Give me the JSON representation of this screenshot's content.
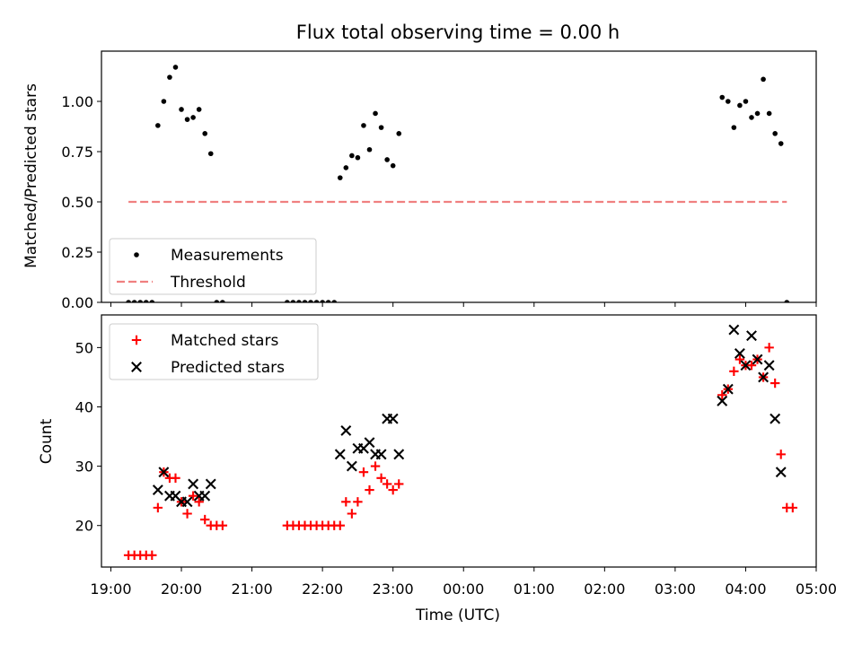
{
  "title": "Flux total observing time = 0.00 h",
  "chart_data": [
    {
      "type": "scatter",
      "panel": "top",
      "title": "Flux total observing time = 0.00 h",
      "ylabel": "Matched/Predicted stars",
      "xlim": [
        "18:52",
        "05:00"
      ],
      "ylim": [
        0,
        1.25
      ],
      "yticks": [
        0.0,
        0.25,
        0.5,
        0.75,
        1.0
      ],
      "ytick_labels": [
        "0.00",
        "0.25",
        "0.50",
        "0.75",
        "1.00"
      ],
      "legend": {
        "placement": "lower-left",
        "entries": [
          "Measurements",
          "Threshold"
        ]
      },
      "series": [
        {
          "name": "Measurements",
          "marker": "dot",
          "color": "#000000",
          "points": [
            [
              "19:15",
              0.0
            ],
            [
              "19:20",
              0.0
            ],
            [
              "19:25",
              0.0
            ],
            [
              "19:30",
              0.0
            ],
            [
              "19:35",
              0.0
            ],
            [
              "19:40",
              0.88
            ],
            [
              "19:45",
              1.0
            ],
            [
              "19:50",
              1.12
            ],
            [
              "19:55",
              1.17
            ],
            [
              "20:00",
              0.96
            ],
            [
              "20:05",
              0.91
            ],
            [
              "20:10",
              0.92
            ],
            [
              "20:15",
              0.96
            ],
            [
              "20:20",
              0.84
            ],
            [
              "20:25",
              0.74
            ],
            [
              "20:30",
              0.0
            ],
            [
              "20:35",
              0.0
            ],
            [
              "21:30",
              0.0
            ],
            [
              "21:35",
              0.0
            ],
            [
              "21:40",
              0.0
            ],
            [
              "21:45",
              0.0
            ],
            [
              "21:50",
              0.0
            ],
            [
              "21:55",
              0.0
            ],
            [
              "22:00",
              0.0
            ],
            [
              "22:05",
              0.0
            ],
            [
              "22:10",
              0.0
            ],
            [
              "22:15",
              0.62
            ],
            [
              "22:20",
              0.67
            ],
            [
              "22:25",
              0.73
            ],
            [
              "22:30",
              0.72
            ],
            [
              "22:35",
              0.88
            ],
            [
              "22:40",
              0.76
            ],
            [
              "22:45",
              0.94
            ],
            [
              "22:50",
              0.87
            ],
            [
              "22:55",
              0.71
            ],
            [
              "23:00",
              0.68
            ],
            [
              "23:05",
              0.84
            ],
            [
              "03:40",
              1.02
            ],
            [
              "03:45",
              1.0
            ],
            [
              "03:50",
              0.87
            ],
            [
              "03:55",
              0.98
            ],
            [
              "04:00",
              1.0
            ],
            [
              "04:05",
              0.92
            ],
            [
              "04:10",
              0.94
            ],
            [
              "04:15",
              1.11
            ],
            [
              "04:20",
              0.94
            ],
            [
              "04:25",
              0.84
            ],
            [
              "04:30",
              0.79
            ],
            [
              "04:35",
              0.0
            ]
          ]
        },
        {
          "name": "Threshold",
          "style": "dashed",
          "color": "#f08080",
          "points": [
            [
              "19:15",
              0.5
            ],
            [
              "04:35",
              0.5
            ]
          ]
        }
      ]
    },
    {
      "type": "scatter",
      "panel": "bottom",
      "xlabel": "Time (UTC)",
      "ylabel": "Count",
      "xlim": [
        "18:52",
        "05:00"
      ],
      "ylim": [
        13,
        55.5
      ],
      "xticks": [
        "19:00",
        "20:00",
        "21:00",
        "22:00",
        "23:00",
        "00:00",
        "01:00",
        "02:00",
        "03:00",
        "04:00",
        "05:00"
      ],
      "yticks": [
        20,
        30,
        40,
        50
      ],
      "ytick_labels": [
        "20",
        "30",
        "40",
        "50"
      ],
      "legend": {
        "placement": "upper-left",
        "entries": [
          "Matched stars",
          "Predicted stars"
        ]
      },
      "series": [
        {
          "name": "Matched stars",
          "marker": "plus",
          "color": "#ff0000",
          "points": [
            [
              "19:15",
              15
            ],
            [
              "19:20",
              15
            ],
            [
              "19:25",
              15
            ],
            [
              "19:30",
              15
            ],
            [
              "19:35",
              15
            ],
            [
              "19:40",
              23
            ],
            [
              "19:45",
              29
            ],
            [
              "19:50",
              28
            ],
            [
              "19:55",
              28
            ],
            [
              "20:00",
              24
            ],
            [
              "20:05",
              22
            ],
            [
              "20:10",
              25
            ],
            [
              "20:15",
              24
            ],
            [
              "20:20",
              21
            ],
            [
              "20:25",
              20
            ],
            [
              "20:30",
              20
            ],
            [
              "20:35",
              20
            ],
            [
              "21:30",
              20
            ],
            [
              "21:35",
              20
            ],
            [
              "21:40",
              20
            ],
            [
              "21:45",
              20
            ],
            [
              "21:50",
              20
            ],
            [
              "21:55",
              20
            ],
            [
              "22:00",
              20
            ],
            [
              "22:05",
              20
            ],
            [
              "22:10",
              20
            ],
            [
              "22:15",
              20
            ],
            [
              "22:20",
              24
            ],
            [
              "22:25",
              22
            ],
            [
              "22:30",
              24
            ],
            [
              "22:35",
              29
            ],
            [
              "22:40",
              26
            ],
            [
              "22:45",
              30
            ],
            [
              "22:50",
              28
            ],
            [
              "22:55",
              27
            ],
            [
              "23:00",
              26
            ],
            [
              "23:05",
              27
            ],
            [
              "03:40",
              42
            ],
            [
              "03:45",
              43
            ],
            [
              "03:50",
              46
            ],
            [
              "03:55",
              48
            ],
            [
              "04:00",
              47
            ],
            [
              "04:05",
              47
            ],
            [
              "04:10",
              48
            ],
            [
              "04:15",
              45
            ],
            [
              "04:20",
              50
            ],
            [
              "04:25",
              44
            ],
            [
              "04:30",
              32
            ],
            [
              "04:35",
              23
            ],
            [
              "04:40",
              23
            ]
          ]
        },
        {
          "name": "Predicted stars",
          "marker": "x",
          "color": "#000000",
          "points": [
            [
              "19:40",
              26
            ],
            [
              "19:45",
              29
            ],
            [
              "19:50",
              25
            ],
            [
              "19:55",
              25
            ],
            [
              "20:00",
              24
            ],
            [
              "20:05",
              24
            ],
            [
              "20:10",
              27
            ],
            [
              "20:15",
              25
            ],
            [
              "20:20",
              25
            ],
            [
              "20:25",
              27
            ],
            [
              "22:15",
              32
            ],
            [
              "22:20",
              36
            ],
            [
              "22:25",
              30
            ],
            [
              "22:30",
              33
            ],
            [
              "22:35",
              33
            ],
            [
              "22:40",
              34
            ],
            [
              "22:45",
              32
            ],
            [
              "22:50",
              32
            ],
            [
              "22:55",
              38
            ],
            [
              "23:00",
              38
            ],
            [
              "23:05",
              32
            ],
            [
              "03:40",
              41
            ],
            [
              "03:45",
              43
            ],
            [
              "03:50",
              53
            ],
            [
              "03:55",
              49
            ],
            [
              "04:00",
              47
            ],
            [
              "04:05",
              52
            ],
            [
              "04:10",
              48
            ],
            [
              "04:15",
              45
            ],
            [
              "04:20",
              47
            ],
            [
              "04:25",
              38
            ],
            [
              "04:30",
              29
            ]
          ]
        }
      ]
    }
  ]
}
